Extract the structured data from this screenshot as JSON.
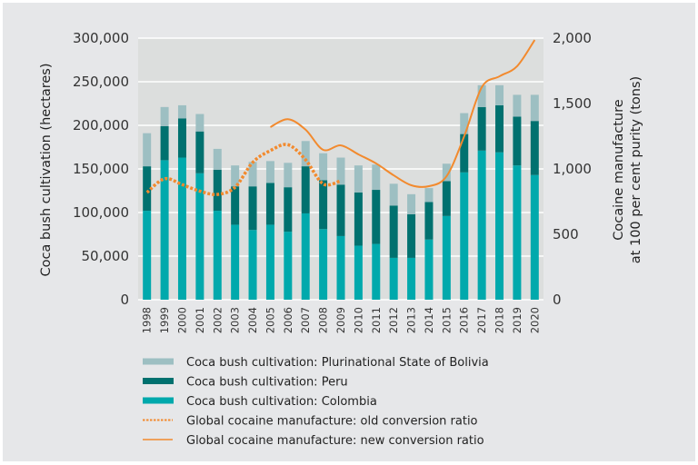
{
  "chart_data": {
    "type": "bar",
    "stacked": true,
    "title": "",
    "xlabel": "",
    "ylabel": "Coca bush cultivation (hectares)",
    "ylabel_right": [
      "Cocaine manufacture",
      "at 100 per cent purity (tons)"
    ],
    "ylim": [
      0,
      300000
    ],
    "ylim_right": [
      0,
      2000
    ],
    "yticks": [
      "0",
      "50,000",
      "100,000",
      "150,000",
      "200,000",
      "250,000",
      "300,000"
    ],
    "yticks_right": [
      "0",
      "500",
      "1,000",
      "1,500",
      "2,000"
    ],
    "grid": true,
    "legend_position": "bottom",
    "categories": [
      "1998",
      "1999",
      "2000",
      "2001",
      "2002",
      "2003",
      "2004",
      "2005",
      "2006",
      "2007",
      "2008",
      "2009",
      "2010",
      "2011",
      "2012",
      "2013",
      "2014",
      "2015",
      "2016",
      "2017",
      "2018",
      "2019",
      "2020"
    ],
    "series": [
      {
        "name": "Coca bush cultivation: Colombia",
        "axis": "left",
        "color": "#00a9ac",
        "values": [
          102000,
          160000,
          163000,
          145000,
          102000,
          86000,
          80000,
          86000,
          78000,
          99000,
          81000,
          73000,
          62000,
          64000,
          48000,
          48000,
          69000,
          96000,
          146000,
          171000,
          169000,
          154000,
          143000
        ]
      },
      {
        "name": "Coca bush cultivation: Peru",
        "axis": "left",
        "color": "#00716f",
        "values": [
          51000,
          39000,
          45000,
          48000,
          47000,
          44000,
          50000,
          48000,
          51000,
          54000,
          56000,
          59000,
          61000,
          62000,
          60000,
          50000,
          43000,
          40000,
          44000,
          50000,
          54000,
          56000,
          62000
        ]
      },
      {
        "name": "Coca bush cultivation: Plurinational State of Bolivia",
        "axis": "left",
        "color": "#9dbfc2",
        "values": [
          38000,
          22000,
          15000,
          20000,
          24000,
          24000,
          28000,
          25000,
          28000,
          29000,
          31000,
          31000,
          31000,
          29000,
          25000,
          23000,
          16000,
          20000,
          24000,
          25000,
          23000,
          25000,
          30000
        ]
      },
      {
        "name": "Global cocaine manufacture: old conversion ratio",
        "axis": "right",
        "type": "line",
        "style": "dotted",
        "color": "#f28a2e",
        "x": [
          "1998",
          "1999",
          "2000",
          "2001",
          "2002",
          "2003",
          "2004",
          "2005",
          "2006",
          "2007",
          "2008",
          "2009"
        ],
        "values": [
          820,
          925,
          880,
          830,
          805,
          860,
          1050,
          1140,
          1185,
          1070,
          885,
          910
        ]
      },
      {
        "name": "Global cocaine manufacture: new conversion ratio",
        "axis": "right",
        "type": "line",
        "style": "solid",
        "color": "#f28a2e",
        "x": [
          "2005",
          "2006",
          "2007",
          "2008",
          "2009",
          "2010",
          "2011",
          "2012",
          "2013",
          "2014",
          "2015",
          "2016",
          "2017",
          "2018",
          "2019",
          "2020"
        ],
        "values": [
          1320,
          1380,
          1300,
          1146,
          1180,
          1111,
          1042,
          951,
          875,
          868,
          944,
          1250,
          1625,
          1708,
          1785,
          1986
        ]
      }
    ]
  },
  "legend_order": [
    2,
    1,
    0,
    3,
    4
  ],
  "colors": {
    "background": "#e6e7e9",
    "plot_background": "#dcdedd",
    "grid": "#ffffff"
  }
}
